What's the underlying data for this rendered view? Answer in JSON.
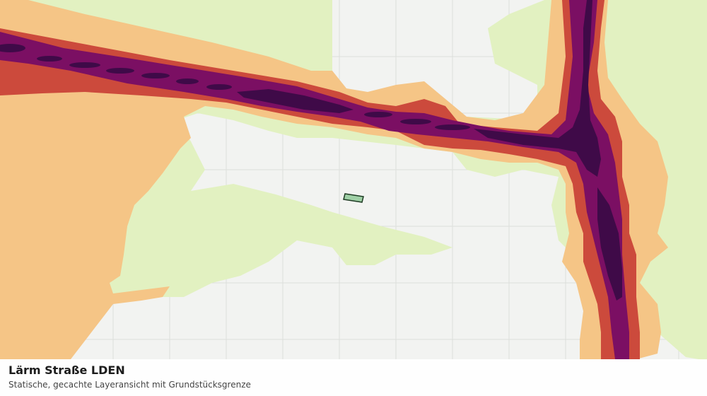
{
  "map": {
    "title": "Lärm Straße LDEN",
    "subtitle": "Statische, gecachte Layeransicht mit Grundstücksgrenze",
    "colors": {
      "background": "#f2f3f1",
      "grid": "#dcdfdc",
      "zone_1_lightest": "#e2f1c1",
      "zone_2": "#f5c586",
      "zone_3": "#cc4a3c",
      "zone_4": "#7b0f63",
      "zone_5_darkest": "#3f0a48",
      "parcel_fill": "#9fd0a6",
      "parcel_stroke": "#1d3a22"
    },
    "layers": [
      "noise-zone-1",
      "noise-zone-2",
      "noise-zone-3",
      "noise-zone-4",
      "noise-zone-5",
      "parcel-boundary"
    ]
  }
}
